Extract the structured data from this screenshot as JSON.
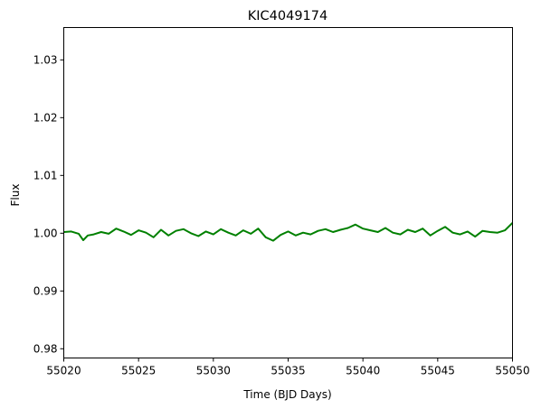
{
  "chart_data": {
    "type": "line",
    "title": "KIC4049174",
    "xlabel": "Time (BJD Days)",
    "ylabel": "Flux",
    "xlim": [
      55020,
      55050
    ],
    "ylim": [
      0.9784,
      1.0356
    ],
    "xticks": [
      55020,
      55025,
      55030,
      55035,
      55040,
      55045,
      55050
    ],
    "xtick_labels": [
      "55020",
      "55025",
      "55030",
      "55035",
      "55040",
      "55045",
      "55050"
    ],
    "yticks": [
      0.98,
      0.99,
      1.0,
      1.01,
      1.02,
      1.03
    ],
    "ytick_labels": [
      "0.98",
      "0.99",
      "1.00",
      "1.01",
      "1.02",
      "1.03"
    ],
    "grid": false,
    "series": [
      {
        "color": "#008000",
        "x": [
          55020.0,
          55020.5,
          55021.0,
          55021.3,
          55021.6,
          55022.0,
          55022.5,
          55023.0,
          55023.5,
          55024.0,
          55024.5,
          55025.0,
          55025.5,
          55026.0,
          55026.5,
          55027.0,
          55027.5,
          55028.0,
          55028.5,
          55029.0,
          55029.5,
          55030.0,
          55030.5,
          55031.0,
          55031.5,
          55032.0,
          55032.5,
          55033.0,
          55033.5,
          55034.0,
          55034.5,
          55035.0,
          55035.5,
          55036.0,
          55036.5,
          55037.0,
          55037.5,
          55038.0,
          55038.5,
          55039.0,
          55039.5,
          55040.0,
          55040.5,
          55041.0,
          55041.5,
          55042.0,
          55042.5,
          55043.0,
          55043.5,
          55044.0,
          55044.5,
          55045.0,
          55045.5,
          55046.0,
          55046.5,
          55047.0,
          55047.5,
          55048.0,
          55048.5,
          55049.0,
          55049.5,
          55050.0
        ],
        "y": [
          1.0002,
          1.0003,
          0.9999,
          0.9988,
          0.9996,
          0.9998,
          1.0002,
          0.9999,
          1.0008,
          1.0003,
          0.9997,
          1.0005,
          1.0001,
          0.9993,
          1.0006,
          0.9996,
          1.0004,
          1.0007,
          1.0,
          0.9995,
          1.0003,
          0.9998,
          1.0007,
          1.0001,
          0.9996,
          1.0005,
          0.9999,
          1.0008,
          0.9993,
          0.9987,
          0.9997,
          1.0003,
          0.9996,
          1.0001,
          0.9998,
          1.0004,
          1.0007,
          1.0002,
          1.0006,
          1.0009,
          1.0015,
          1.0008,
          1.0005,
          1.0002,
          1.0009,
          1.0001,
          0.9998,
          1.0006,
          1.0002,
          1.0008,
          0.9996,
          1.0004,
          1.0011,
          1.0001,
          0.9998,
          1.0003,
          0.9994,
          1.0004,
          1.0002,
          1.0001,
          1.0005,
          1.0018
        ]
      }
    ]
  }
}
